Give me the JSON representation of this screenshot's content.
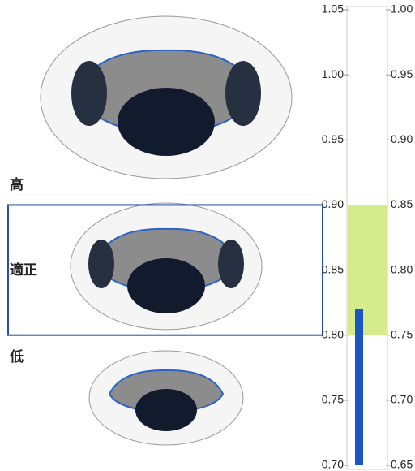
{
  "chart_data": {
    "type": "gauge",
    "values": [
      0.82
    ],
    "color": "#1a56c4",
    "ylim": [
      0.7,
      1.05
    ],
    "yticks": [
      {
        "value": 0.7,
        "label": "0.70"
      },
      0.75,
      {
        "value": 0.8,
        "label": "0.80"
      },
      0.85,
      {
        "value": 0.9,
        "label": "0.90"
      },
      0.95,
      {
        "value": 1.0,
        "label": "1.00"
      },
      1.05
    ],
    "y2lim": [
      0.65,
      1.0
    ],
    "y2ticks": [
      0.65,
      {
        "value": 0.7,
        "label": "0.70"
      },
      0.75,
      {
        "value": 0.8,
        "label": "0.80"
      },
      0.85,
      {
        "value": 0.9,
        "label": "0.90"
      },
      0.95,
      {
        "value": 1.0,
        "label": "1.00"
      }
    ],
    "band": {
      "range": [
        0.8,
        0.9
      ],
      "color": "#d4ec8c"
    },
    "zone_labels": [
      "高",
      "適正",
      "低"
    ]
  }
}
